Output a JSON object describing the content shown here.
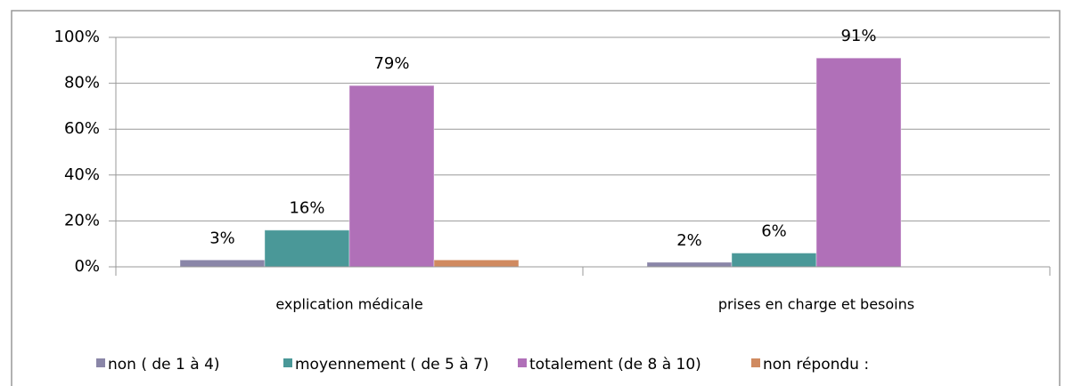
{
  "chart_data": {
    "type": "bar",
    "categories": [
      "explication médicale",
      "prises en charge et besoins"
    ],
    "series": [
      {
        "name": "non ( de 1 à 4)",
        "color": "#8a86a8",
        "values": [
          3,
          2
        ],
        "value_labels": [
          "3%",
          "2%"
        ]
      },
      {
        "name": "moyennement ( de 5 à 7)",
        "color": "#4a9898",
        "values": [
          16,
          6
        ],
        "value_labels": [
          "16%",
          "6%"
        ]
      },
      {
        "name": "totalement (de 8 à 10)",
        "color": "#b070b8",
        "values": [
          79,
          91
        ],
        "value_labels": [
          "79%",
          "91%"
        ]
      },
      {
        "name": "non répondu :",
        "color": "#d08a60",
        "values": [
          3,
          null
        ]
      }
    ],
    "ylim": [
      0,
      100
    ],
    "yticks": [
      {
        "value": 0,
        "label": "0%"
      },
      {
        "value": 20,
        "label": "20%"
      },
      {
        "value": 40,
        "label": "40%"
      },
      {
        "value": 60,
        "label": "60%"
      },
      {
        "value": 80,
        "label": "80%"
      },
      {
        "value": 100,
        "label": "100%"
      }
    ],
    "grid": true
  }
}
